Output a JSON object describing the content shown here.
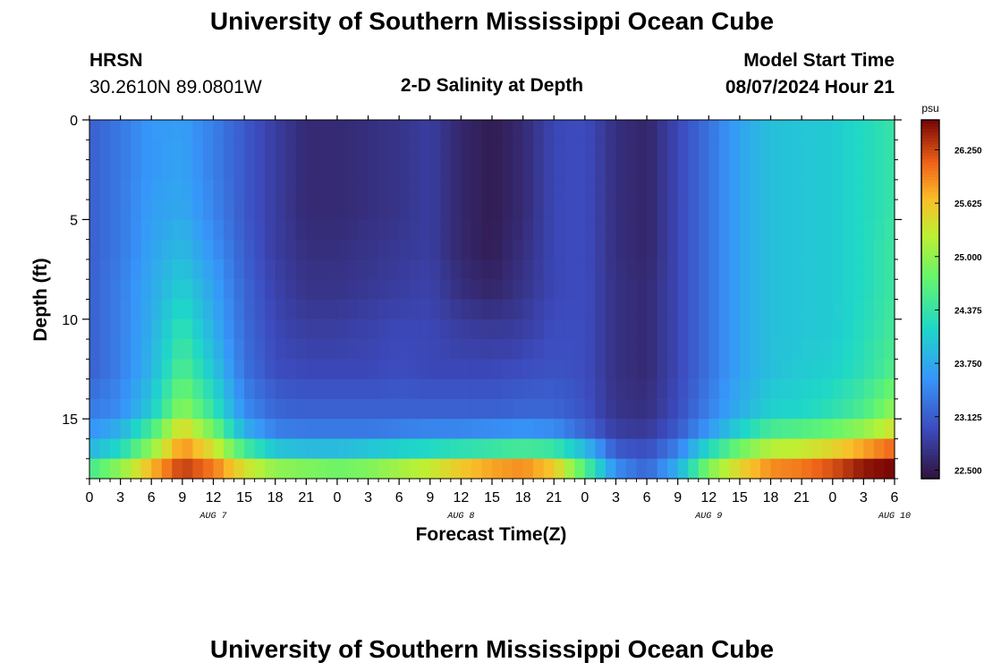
{
  "header": {
    "title_top": "University of Southern Mississippi Ocean Cube",
    "title_bottom": "University of Southern Mississippi Ocean Cube",
    "station": "HRSN",
    "coords": "30.2610N  89.0801W",
    "plot_title": "2-D Salinity at Depth",
    "model_start_label": "Model Start Time",
    "model_start_value": "08/07/2024 Hour 21"
  },
  "chart_data": {
    "type": "heatmap",
    "title": "2-D Salinity at Depth",
    "xlabel": "Forecast Time(Z)",
    "ylabel": "Depth (ft)",
    "x_tick_labels": [
      "0",
      "3",
      "6",
      "9",
      "12",
      "15",
      "18",
      "21",
      "0",
      "3",
      "6",
      "9",
      "12",
      "15",
      "18",
      "21",
      "0",
      "3",
      "6",
      "9",
      "12",
      "15",
      "18",
      "21",
      "0",
      "3",
      "6"
    ],
    "date_labels": [
      {
        "label": "AUG 7",
        "hour_index": 12
      },
      {
        "label": "AUG 8",
        "hour_index": 36
      },
      {
        "label": "AUG 9",
        "hour_index": 60
      },
      {
        "label": "AUG 10",
        "hour_index": 78
      }
    ],
    "x_range_hours": [
      0,
      78
    ],
    "y_ticks": [
      0,
      5,
      10,
      15
    ],
    "y_range": [
      0,
      18
    ],
    "colorbar": {
      "unit": "psu",
      "ticks": [
        22.5,
        23.125,
        23.75,
        24.375,
        25.0,
        25.625,
        26.25
      ],
      "tick_labels": [
        "22.500",
        "23.125",
        "23.750",
        "24.375",
        "25.000",
        "25.625",
        "26.250"
      ],
      "range": [
        22.4,
        26.6
      ]
    },
    "salinity_psu": {
      "depth_ft": [
        0.5,
        2.5,
        4.5,
        6.5,
        8.5,
        10.5,
        12.5,
        14.5,
        15.5,
        16.5,
        17.5
      ],
      "hour": [
        0,
        3,
        6,
        9,
        12,
        15,
        18,
        21,
        24,
        27,
        30,
        33,
        36,
        39,
        42,
        45,
        48,
        51,
        54,
        57,
        60,
        63,
        66,
        69,
        72,
        75,
        78
      ],
      "values": [
        [
          23.15,
          23.35,
          23.6,
          23.65,
          23.4,
          23.1,
          22.85,
          22.65,
          22.65,
          22.7,
          22.75,
          22.85,
          22.62,
          22.5,
          22.65,
          22.95,
          23.0,
          22.7,
          22.6,
          22.95,
          23.3,
          23.7,
          23.95,
          24.0,
          24.05,
          24.2,
          24.4
        ],
        [
          23.15,
          23.35,
          23.6,
          23.7,
          23.4,
          23.1,
          22.85,
          22.65,
          22.65,
          22.7,
          22.75,
          22.85,
          22.62,
          22.5,
          22.65,
          22.95,
          23.0,
          22.7,
          22.6,
          22.95,
          23.3,
          23.7,
          23.95,
          24.0,
          24.05,
          24.2,
          24.4
        ],
        [
          23.15,
          23.35,
          23.65,
          23.75,
          23.45,
          23.1,
          22.85,
          22.65,
          22.65,
          22.7,
          22.75,
          22.85,
          22.62,
          22.5,
          22.65,
          22.95,
          23.0,
          22.7,
          22.6,
          22.95,
          23.3,
          23.7,
          23.95,
          24.0,
          24.05,
          24.2,
          24.4
        ],
        [
          23.15,
          23.35,
          23.7,
          23.9,
          23.55,
          23.15,
          22.85,
          22.7,
          22.7,
          22.75,
          22.8,
          22.85,
          22.62,
          22.52,
          22.7,
          22.95,
          23.0,
          22.7,
          22.6,
          22.95,
          23.3,
          23.7,
          23.95,
          24.0,
          24.05,
          24.2,
          24.45
        ],
        [
          23.15,
          23.4,
          23.75,
          24.1,
          23.7,
          23.2,
          22.9,
          22.75,
          22.75,
          22.8,
          22.85,
          22.9,
          22.7,
          22.6,
          22.75,
          22.95,
          23.0,
          22.72,
          22.65,
          22.95,
          23.3,
          23.7,
          23.95,
          24.0,
          24.05,
          24.2,
          24.45
        ],
        [
          23.15,
          23.4,
          23.8,
          24.35,
          23.8,
          23.25,
          22.95,
          22.85,
          22.85,
          22.9,
          22.95,
          22.95,
          22.85,
          22.8,
          22.85,
          23.0,
          23.0,
          22.72,
          22.65,
          22.95,
          23.3,
          23.7,
          23.95,
          24.0,
          24.05,
          24.25,
          24.5
        ],
        [
          23.15,
          23.4,
          23.85,
          24.6,
          24.0,
          23.3,
          23.0,
          22.95,
          22.95,
          22.95,
          23.0,
          22.95,
          22.95,
          22.95,
          23.0,
          23.05,
          23.0,
          22.72,
          22.65,
          22.95,
          23.3,
          23.7,
          23.95,
          24.05,
          24.1,
          24.3,
          24.6
        ],
        [
          23.35,
          23.5,
          24.05,
          25.0,
          24.35,
          23.5,
          23.2,
          23.15,
          23.15,
          23.15,
          23.15,
          23.15,
          23.15,
          23.15,
          23.2,
          23.2,
          23.05,
          22.75,
          22.7,
          23.0,
          23.4,
          23.8,
          24.1,
          24.15,
          24.3,
          24.55,
          25.0
        ],
        [
          23.55,
          23.8,
          24.5,
          25.5,
          24.8,
          23.8,
          23.4,
          23.35,
          23.35,
          23.35,
          23.4,
          23.45,
          23.45,
          23.5,
          23.55,
          23.5,
          23.2,
          22.85,
          22.8,
          23.1,
          23.6,
          24.1,
          24.5,
          24.6,
          24.75,
          25.0,
          25.4
        ],
        [
          23.85,
          24.2,
          25.0,
          25.9,
          25.4,
          24.5,
          24.0,
          23.9,
          23.9,
          24.0,
          24.1,
          24.2,
          24.3,
          24.4,
          24.5,
          24.4,
          23.9,
          23.1,
          23.0,
          23.4,
          24.2,
          24.8,
          25.2,
          25.3,
          25.5,
          25.8,
          26.1
        ],
        [
          24.5,
          25.0,
          25.7,
          26.3,
          26.0,
          25.4,
          25.0,
          24.9,
          24.8,
          24.9,
          25.1,
          25.3,
          25.6,
          25.8,
          25.9,
          25.6,
          24.6,
          23.5,
          23.2,
          23.8,
          24.9,
          25.5,
          25.9,
          26.0,
          26.2,
          26.5,
          26.6
        ]
      ]
    }
  }
}
